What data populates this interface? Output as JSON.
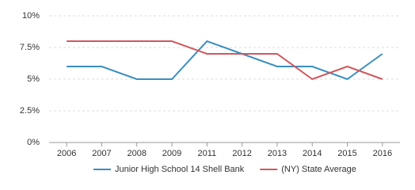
{
  "chart_data": {
    "type": "line",
    "categories": [
      "2006",
      "2007",
      "2008",
      "2009",
      "2011",
      "2012",
      "2013",
      "2014",
      "2015",
      "2016"
    ],
    "series": [
      {
        "name": "Junior High School 14 Shell Bank",
        "color": "#3a8fc0",
        "values": [
          6,
          6,
          5,
          5,
          8,
          7,
          6,
          6,
          5,
          7
        ]
      },
      {
        "name": "(NY) State Average",
        "color": "#d0595e",
        "values": [
          8,
          8,
          8,
          8,
          7,
          7,
          7,
          5,
          6,
          5
        ]
      }
    ],
    "ylim": [
      0,
      10
    ],
    "yticks": [
      {
        "value": 0,
        "label": "0%"
      },
      {
        "value": 2.5,
        "label": "2.5%"
      },
      {
        "value": 5,
        "label": "5%"
      },
      {
        "value": 7.5,
        "label": "7.5%"
      },
      {
        "value": 10,
        "label": "10%"
      }
    ],
    "grid": true
  }
}
